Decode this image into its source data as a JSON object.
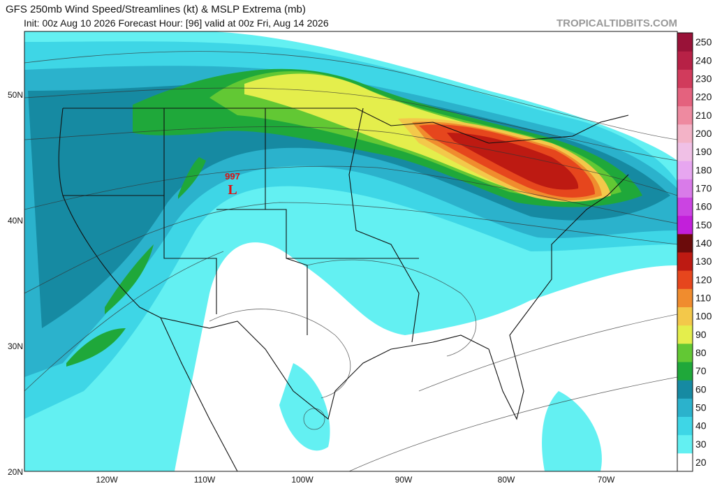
{
  "header": {
    "title": "GFS 250mb Wind Speed/Streamlines (kt) & MSLP Extrema (mb)",
    "subtitle": "Init: 00z Aug 10 2026   Forecast Hour: [96]   valid at 00z Fri, Aug 14 2026",
    "site": "TROPICALTIDBITS.COM"
  },
  "map": {
    "lat_labels": [
      "50N",
      "40N",
      "30N",
      "20N"
    ],
    "lon_labels": [
      "120W",
      "110W",
      "100W",
      "90W",
      "80W",
      "70W"
    ],
    "low": {
      "pressure": "997",
      "symbol": "L"
    }
  },
  "colorbar": {
    "levels": [
      20,
      30,
      40,
      50,
      60,
      70,
      80,
      90,
      100,
      110,
      120,
      130,
      140,
      150,
      160,
      170,
      180,
      190,
      200,
      210,
      220,
      230,
      240,
      250
    ],
    "colors": [
      "#ffffff",
      "#63f0f2",
      "#3ed6e6",
      "#2bb2cc",
      "#168aa2",
      "#1fa83a",
      "#62c834",
      "#e4ee4c",
      "#f3c84a",
      "#f08c2e",
      "#e6461d",
      "#bd1a12",
      "#6b0b0b",
      "#c21fda",
      "#cb44e2",
      "#d97be9",
      "#e7a6f0",
      "#f0c0e6",
      "#f3b3c7",
      "#ee8aa0",
      "#e4627e",
      "#d13b5c",
      "#b72146",
      "#991238"
    ]
  }
}
